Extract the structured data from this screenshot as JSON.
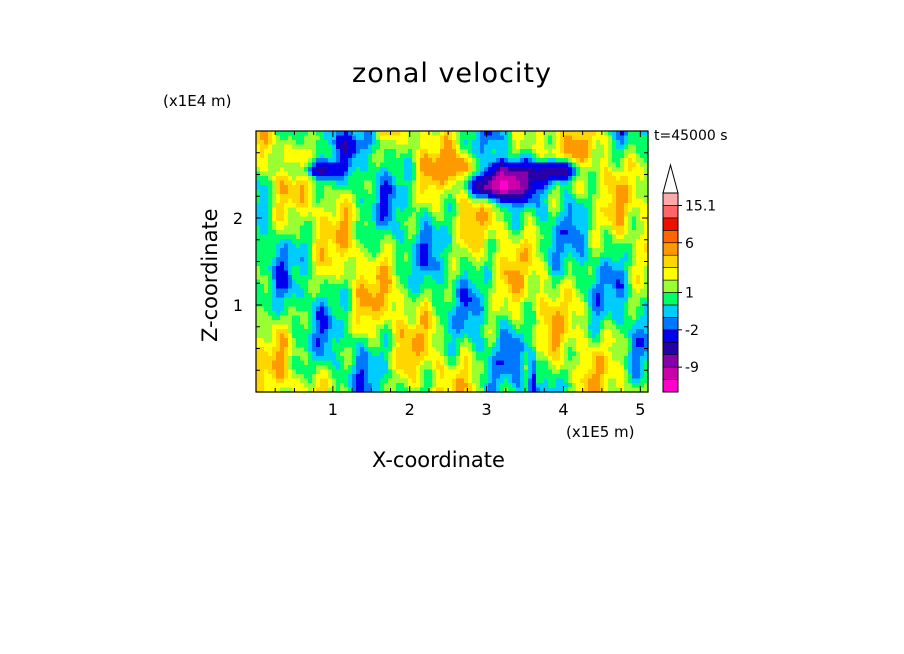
{
  "chart_data": {
    "type": "heatmap",
    "title": "zonal velocity",
    "xlabel": "X-coordinate",
    "ylabel": "Z-coordinate",
    "x_unit": "(x1E5 m)",
    "z_unit": "(x1E4 m)",
    "time_label": "t=45000 s",
    "xlim": [
      0,
      5.1
    ],
    "ylim": [
      0,
      3.0
    ],
    "x_ticks": [
      "1",
      "2",
      "3",
      "4",
      "5"
    ],
    "y_ticks": [
      "1",
      "2"
    ],
    "colorbar": {
      "labels": [
        "15.1",
        "6",
        "1",
        "-2",
        "-9"
      ],
      "levels": [
        -16,
        -12,
        -9,
        -6,
        -4,
        -2,
        -1,
        0,
        1,
        2,
        3,
        4,
        6,
        9,
        12,
        15.1
      ],
      "colors": [
        "#ff00cc",
        "#cc00aa",
        "#8800aa",
        "#2800a8",
        "#0000ee",
        "#0077ff",
        "#00ccff",
        "#00ff66",
        "#99ff33",
        "#ffff00",
        "#ffd700",
        "#ff9900",
        "#ff6600",
        "#ee1100",
        "#ff6666",
        "#ffaaaa"
      ],
      "overflow_color": "#ffffff"
    },
    "features": [
      {
        "x": 3.15,
        "z": 2.35,
        "value": -10,
        "sx": 0.32,
        "sz": 0.14
      },
      {
        "x": 3.25,
        "z": 2.5,
        "value": -7,
        "sx": 0.35,
        "sz": 0.18
      },
      {
        "x": 3.95,
        "z": 2.55,
        "value": -9,
        "sx": 0.25,
        "sz": 0.12
      },
      {
        "x": 0.8,
        "z": 2.55,
        "value": -6,
        "sx": 0.28,
        "sz": 0.1
      },
      {
        "x": 2.7,
        "z": 2.58,
        "value": 3.5,
        "sx": 0.35,
        "sz": 0.15
      },
      {
        "x": 3.75,
        "z": 2.7,
        "value": 2.5,
        "sx": 0.45,
        "sz": 0.2
      },
      {
        "x": 3.6,
        "z": 0.15,
        "value": -5,
        "sx": 0.05,
        "sz": 0.35
      },
      {
        "x": 1.3,
        "z": 2.85,
        "value": -1.5,
        "sx": 0.5,
        "sz": 0.12
      },
      {
        "x": 1.5,
        "z": 1.0,
        "value": 0.5,
        "sx": 0.6,
        "sz": 0.3
      }
    ]
  }
}
